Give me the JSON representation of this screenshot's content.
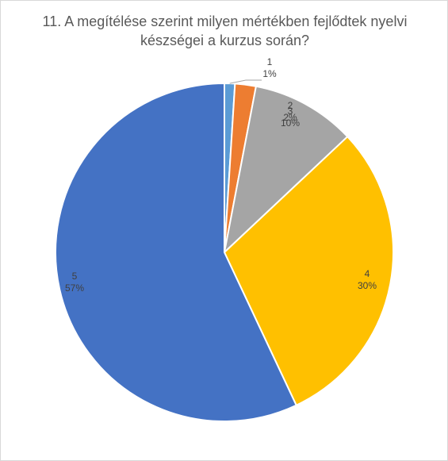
{
  "chart_data": {
    "type": "pie",
    "title_lines": [
      "11. A megítélése szerint milyen mértékben fejlődtek nyelvi",
      "készségei a kurzus során?"
    ],
    "slices": [
      {
        "category": "1",
        "value": 1,
        "percent_label": "1%",
        "color": "#5b9bd5"
      },
      {
        "category": "2",
        "value": 2,
        "percent_label": "2%",
        "color": "#ed7d31"
      },
      {
        "category": "3",
        "value": 10,
        "percent_label": "10%",
        "color": "#a5a5a5"
      },
      {
        "category": "4",
        "value": 30,
        "percent_label": "30%",
        "color": "#ffc000"
      },
      {
        "category": "5",
        "value": 57,
        "percent_label": "57%",
        "color": "#4472c4"
      }
    ],
    "start_angle_deg": 0,
    "direction": "clockwise",
    "legend": "none",
    "data_labels": "category and percentage"
  }
}
